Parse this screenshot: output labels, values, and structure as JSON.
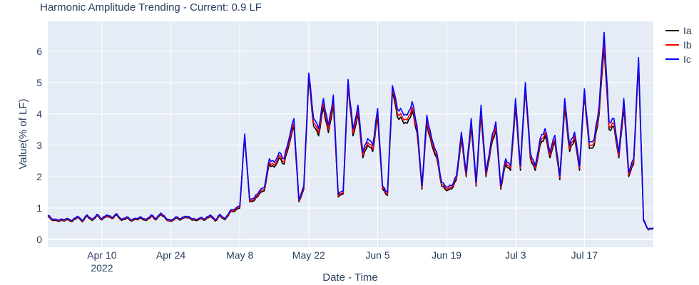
{
  "chart_data": {
    "type": "line",
    "title": "Harmonic Amplitude Trending - Current: 0.9 LF",
    "xlabel": "Date - Time",
    "ylabel": "Value(% of LF)",
    "x_range": [
      "2022-03-30",
      "2022-07-31"
    ],
    "ylim": [
      -0.25,
      6.95
    ],
    "x_ticks": [
      {
        "date": "2022-04-10",
        "label": "Apr 10",
        "sublabel": "2022"
      },
      {
        "date": "2022-04-24",
        "label": "Apr 24",
        "sublabel": ""
      },
      {
        "date": "2022-05-08",
        "label": "May 8",
        "sublabel": ""
      },
      {
        "date": "2022-05-22",
        "label": "May 22",
        "sublabel": ""
      },
      {
        "date": "2022-06-05",
        "label": "Jun 5",
        "sublabel": ""
      },
      {
        "date": "2022-06-19",
        "label": "Jun 19",
        "sublabel": ""
      },
      {
        "date": "2022-07-03",
        "label": "Jul 3",
        "sublabel": ""
      },
      {
        "date": "2022-07-17",
        "label": "Jul 17",
        "sublabel": ""
      }
    ],
    "y_ticks": [
      0,
      1,
      2,
      3,
      4,
      5,
      6
    ],
    "grid": true,
    "legend_position": "top-right",
    "series": [
      {
        "name": "Ia",
        "color": "#000000"
      },
      {
        "name": "Ib",
        "color": "#ff0000"
      },
      {
        "name": "Ic",
        "color": "#0000ff"
      }
    ],
    "points": [
      [
        "2022-03-30",
        0.72,
        0.74,
        0.77
      ],
      [
        "2022-03-31",
        0.6,
        0.62,
        0.64
      ],
      [
        "2022-04-01",
        0.58,
        0.6,
        0.62
      ],
      [
        "2022-04-02",
        0.6,
        0.62,
        0.64
      ],
      [
        "2022-04-03",
        0.63,
        0.65,
        0.67
      ],
      [
        "2022-04-04",
        0.57,
        0.59,
        0.61
      ],
      [
        "2022-04-05",
        0.7,
        0.72,
        0.74
      ],
      [
        "2022-04-06",
        0.56,
        0.58,
        0.6
      ],
      [
        "2022-04-07",
        0.74,
        0.76,
        0.78
      ],
      [
        "2022-04-08",
        0.6,
        0.62,
        0.64
      ],
      [
        "2022-04-09",
        0.76,
        0.78,
        0.8
      ],
      [
        "2022-04-10",
        0.62,
        0.64,
        0.66
      ],
      [
        "2022-04-11",
        0.73,
        0.75,
        0.78
      ],
      [
        "2022-04-12",
        0.66,
        0.68,
        0.7
      ],
      [
        "2022-04-13",
        0.78,
        0.8,
        0.82
      ],
      [
        "2022-04-14",
        0.6,
        0.62,
        0.64
      ],
      [
        "2022-04-15",
        0.68,
        0.7,
        0.72
      ],
      [
        "2022-04-16",
        0.58,
        0.6,
        0.62
      ],
      [
        "2022-04-17",
        0.63,
        0.65,
        0.67
      ],
      [
        "2022-04-18",
        0.67,
        0.69,
        0.71
      ],
      [
        "2022-04-19",
        0.6,
        0.62,
        0.64
      ],
      [
        "2022-04-20",
        0.73,
        0.75,
        0.78
      ],
      [
        "2022-04-21",
        0.62,
        0.64,
        0.66
      ],
      [
        "2022-04-22",
        0.79,
        0.81,
        0.84
      ],
      [
        "2022-04-23",
        0.64,
        0.66,
        0.68
      ],
      [
        "2022-04-24",
        0.57,
        0.59,
        0.61
      ],
      [
        "2022-04-25",
        0.68,
        0.7,
        0.72
      ],
      [
        "2022-04-26",
        0.62,
        0.64,
        0.66
      ],
      [
        "2022-04-27",
        0.7,
        0.72,
        0.74
      ],
      [
        "2022-04-28",
        0.65,
        0.67,
        0.69
      ],
      [
        "2022-04-29",
        0.6,
        0.62,
        0.64
      ],
      [
        "2022-04-30",
        0.66,
        0.68,
        0.7
      ],
      [
        "2022-05-01",
        0.62,
        0.64,
        0.66
      ],
      [
        "2022-05-02",
        0.73,
        0.75,
        0.78
      ],
      [
        "2022-05-03",
        0.58,
        0.6,
        0.62
      ],
      [
        "2022-05-04",
        0.75,
        0.77,
        0.8
      ],
      [
        "2022-05-05",
        0.62,
        0.64,
        0.66
      ],
      [
        "2022-05-06",
        0.86,
        0.88,
        0.91
      ],
      [
        "2022-05-07",
        0.9,
        0.93,
        0.97
      ],
      [
        "2022-05-08",
        1.0,
        1.03,
        1.07
      ],
      [
        "2022-05-09",
        3.3,
        3.33,
        3.36
      ],
      [
        "2022-05-10",
        1.2,
        1.23,
        1.28
      ],
      [
        "2022-05-11",
        1.25,
        1.29,
        1.34
      ],
      [
        "2022-05-12",
        1.45,
        1.49,
        1.55
      ],
      [
        "2022-05-13",
        1.55,
        1.6,
        1.66
      ],
      [
        "2022-05-14",
        2.4,
        2.47,
        2.57
      ],
      [
        "2022-05-15",
        2.3,
        2.37,
        2.46
      ],
      [
        "2022-05-16",
        2.6,
        2.68,
        2.78
      ],
      [
        "2022-05-17",
        2.4,
        2.47,
        2.57
      ],
      [
        "2022-05-18",
        3.0,
        3.09,
        3.21
      ],
      [
        "2022-05-19",
        3.6,
        3.71,
        3.85
      ],
      [
        "2022-05-20",
        1.2,
        1.24,
        1.28
      ],
      [
        "2022-05-21",
        1.6,
        1.65,
        1.71
      ],
      [
        "2022-05-22",
        5.1,
        5.2,
        5.3
      ],
      [
        "2022-05-23",
        3.6,
        3.71,
        3.85
      ],
      [
        "2022-05-24",
        3.3,
        3.4,
        3.53
      ],
      [
        "2022-05-25",
        4.2,
        4.33,
        4.49
      ],
      [
        "2022-05-26",
        3.4,
        3.5,
        3.64
      ],
      [
        "2022-05-27",
        4.3,
        4.43,
        4.6
      ],
      [
        "2022-05-28",
        1.35,
        1.39,
        1.44
      ],
      [
        "2022-05-29",
        1.45,
        1.49,
        1.55
      ],
      [
        "2022-05-30",
        4.9,
        5.0,
        5.1
      ],
      [
        "2022-05-31",
        3.3,
        3.4,
        3.53
      ],
      [
        "2022-06-01",
        4.0,
        4.12,
        4.28
      ],
      [
        "2022-06-02",
        2.6,
        2.68,
        2.78
      ],
      [
        "2022-06-03",
        3.0,
        3.09,
        3.21
      ],
      [
        "2022-06-04",
        2.8,
        2.88,
        3.0
      ],
      [
        "2022-06-05",
        3.9,
        4.02,
        4.17
      ],
      [
        "2022-06-06",
        1.6,
        1.65,
        1.71
      ],
      [
        "2022-06-07",
        1.4,
        1.44,
        1.5
      ],
      [
        "2022-06-08",
        4.7,
        4.8,
        4.9
      ],
      [
        "2022-06-09",
        3.9,
        4.02,
        4.17
      ],
      [
        "2022-06-10",
        3.8,
        3.91,
        4.07
      ],
      [
        "2022-06-11",
        3.7,
        3.81,
        3.96
      ],
      [
        "2022-06-12",
        4.1,
        4.22,
        4.39
      ],
      [
        "2022-06-13",
        3.4,
        3.5,
        3.64
      ],
      [
        "2022-06-14",
        1.6,
        1.65,
        1.71
      ],
      [
        "2022-06-15",
        3.7,
        3.81,
        3.96
      ],
      [
        "2022-06-16",
        3.0,
        3.09,
        3.21
      ],
      [
        "2022-06-17",
        2.6,
        2.68,
        2.78
      ],
      [
        "2022-06-18",
        1.7,
        1.75,
        1.82
      ],
      [
        "2022-06-19",
        1.55,
        1.6,
        1.66
      ],
      [
        "2022-06-20",
        1.6,
        1.65,
        1.71
      ],
      [
        "2022-06-21",
        1.9,
        1.96,
        2.03
      ],
      [
        "2022-06-22",
        3.2,
        3.3,
        3.42
      ],
      [
        "2022-06-23",
        2.0,
        2.06,
        2.14
      ],
      [
        "2022-06-24",
        3.6,
        3.71,
        3.85
      ],
      [
        "2022-06-25",
        1.7,
        1.75,
        1.82
      ],
      [
        "2022-06-26",
        4.0,
        4.12,
        4.28
      ],
      [
        "2022-06-27",
        2.0,
        2.06,
        2.14
      ],
      [
        "2022-06-28",
        2.9,
        2.99,
        3.1
      ],
      [
        "2022-06-29",
        3.5,
        3.6,
        3.75
      ],
      [
        "2022-06-30",
        1.6,
        1.65,
        1.71
      ],
      [
        "2022-07-01",
        2.4,
        2.47,
        2.57
      ],
      [
        "2022-07-02",
        2.2,
        2.27,
        2.35
      ],
      [
        "2022-07-03",
        4.2,
        4.33,
        4.49
      ],
      [
        "2022-07-04",
        2.2,
        2.27,
        2.35
      ],
      [
        "2022-07-05",
        4.8,
        4.9,
        5.0
      ],
      [
        "2022-07-06",
        2.6,
        2.68,
        2.78
      ],
      [
        "2022-07-07",
        2.2,
        2.27,
        2.35
      ],
      [
        "2022-07-08",
        3.0,
        3.09,
        3.21
      ],
      [
        "2022-07-09",
        3.3,
        3.4,
        3.53
      ],
      [
        "2022-07-10",
        2.6,
        2.68,
        2.78
      ],
      [
        "2022-07-11",
        3.1,
        3.19,
        3.32
      ],
      [
        "2022-07-12",
        1.9,
        1.96,
        2.03
      ],
      [
        "2022-07-13",
        4.2,
        4.33,
        4.49
      ],
      [
        "2022-07-14",
        2.8,
        2.88,
        3.0
      ],
      [
        "2022-07-15",
        3.2,
        3.3,
        3.42
      ],
      [
        "2022-07-16",
        2.2,
        2.27,
        2.35
      ],
      [
        "2022-07-17",
        4.6,
        4.7,
        4.8
      ],
      [
        "2022-07-18",
        2.9,
        2.99,
        3.1
      ],
      [
        "2022-07-19",
        3.0,
        3.09,
        3.21
      ],
      [
        "2022-07-20",
        4.0,
        4.12,
        4.28
      ],
      [
        "2022-07-21",
        6.1,
        6.3,
        6.6
      ],
      [
        "2022-07-22",
        3.5,
        3.6,
        3.75
      ],
      [
        "2022-07-23",
        3.6,
        3.71,
        3.85
      ],
      [
        "2022-07-24",
        2.6,
        2.68,
        2.78
      ],
      [
        "2022-07-25",
        4.2,
        4.33,
        4.49
      ],
      [
        "2022-07-26",
        2.0,
        2.06,
        2.14
      ],
      [
        "2022-07-27",
        2.4,
        2.47,
        2.57
      ],
      [
        "2022-07-28",
        5.6,
        5.7,
        5.8
      ],
      [
        "2022-07-29",
        0.6,
        0.62,
        0.64
      ],
      [
        "2022-07-30",
        0.3,
        0.31,
        0.32
      ],
      [
        "2022-07-31",
        0.35,
        0.36,
        0.37
      ]
    ]
  }
}
